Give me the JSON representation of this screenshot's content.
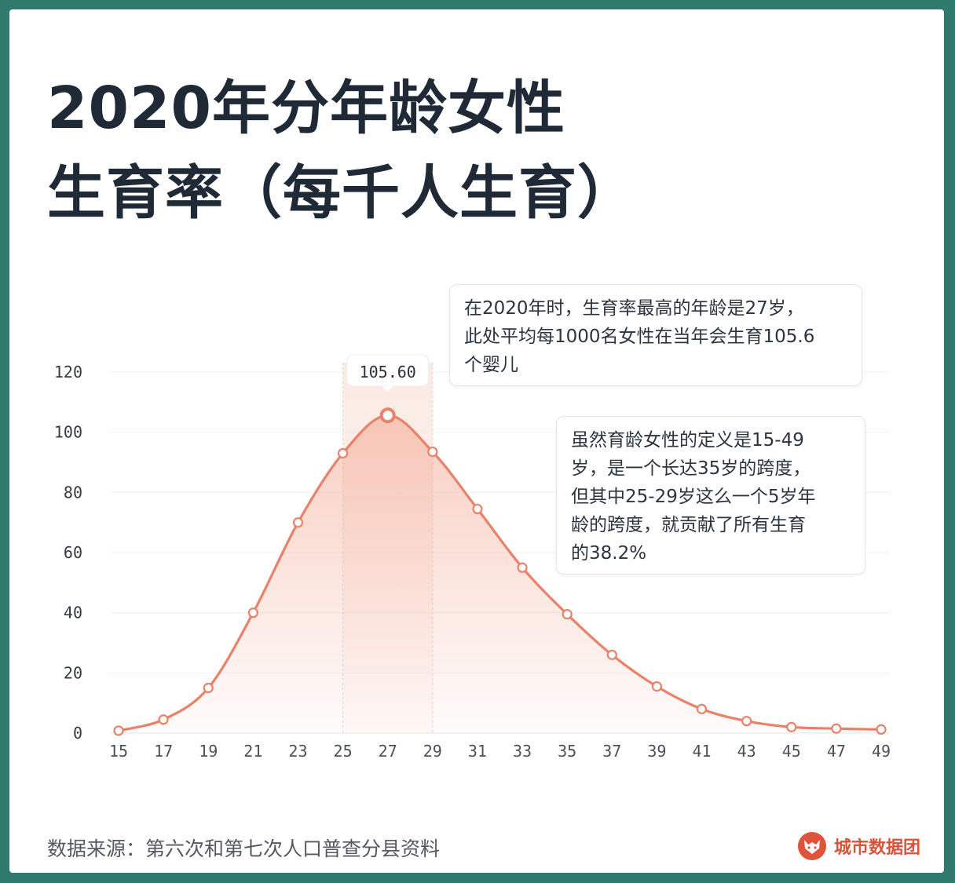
{
  "title": {
    "line1": "2020年分年龄女性",
    "line2": "生育率（每千人生育）"
  },
  "chart_data": {
    "type": "area",
    "x": [
      15,
      17,
      19,
      21,
      23,
      25,
      27,
      29,
      31,
      33,
      35,
      37,
      39,
      41,
      43,
      45,
      47,
      49
    ],
    "values": [
      0.8,
      4.5,
      15,
      40,
      70,
      93,
      105.6,
      93.5,
      74.5,
      55,
      39.5,
      26,
      15.5,
      8,
      4,
      2,
      1.5,
      1.2
    ],
    "ylim": [
      0,
      120
    ],
    "yticks": [
      0,
      20,
      40,
      60,
      80,
      100,
      120
    ],
    "xticks": [
      15,
      17,
      19,
      21,
      23,
      25,
      27,
      29,
      31,
      33,
      35,
      37,
      39,
      41,
      43,
      45,
      47,
      49
    ],
    "highlight": {
      "x": 27,
      "label": "105.60",
      "band": [
        25,
        29
      ]
    },
    "grid": true,
    "colors": {
      "line": "#e8826a",
      "fill": "#f3a68f",
      "band": "#fbe7e0"
    }
  },
  "annotations": [
    {
      "lines": [
        "在2020年时，生育率最高的年龄是27岁，",
        "此处平均每1000名女性在当年会生育105.6",
        "个婴儿"
      ]
    },
    {
      "lines": [
        "虽然育龄女性的定义是15-49",
        "岁，是一个长达35岁的跨度，",
        "但其中25-29岁这么一个5岁年",
        "龄的跨度，就贡献了所有生育",
        "的38.2%"
      ]
    }
  ],
  "footer": {
    "source": "数据来源：第六次和第七次人口普查分县资料",
    "brand": "城市数据团",
    "brand_icon": "fox-logo-icon"
  }
}
